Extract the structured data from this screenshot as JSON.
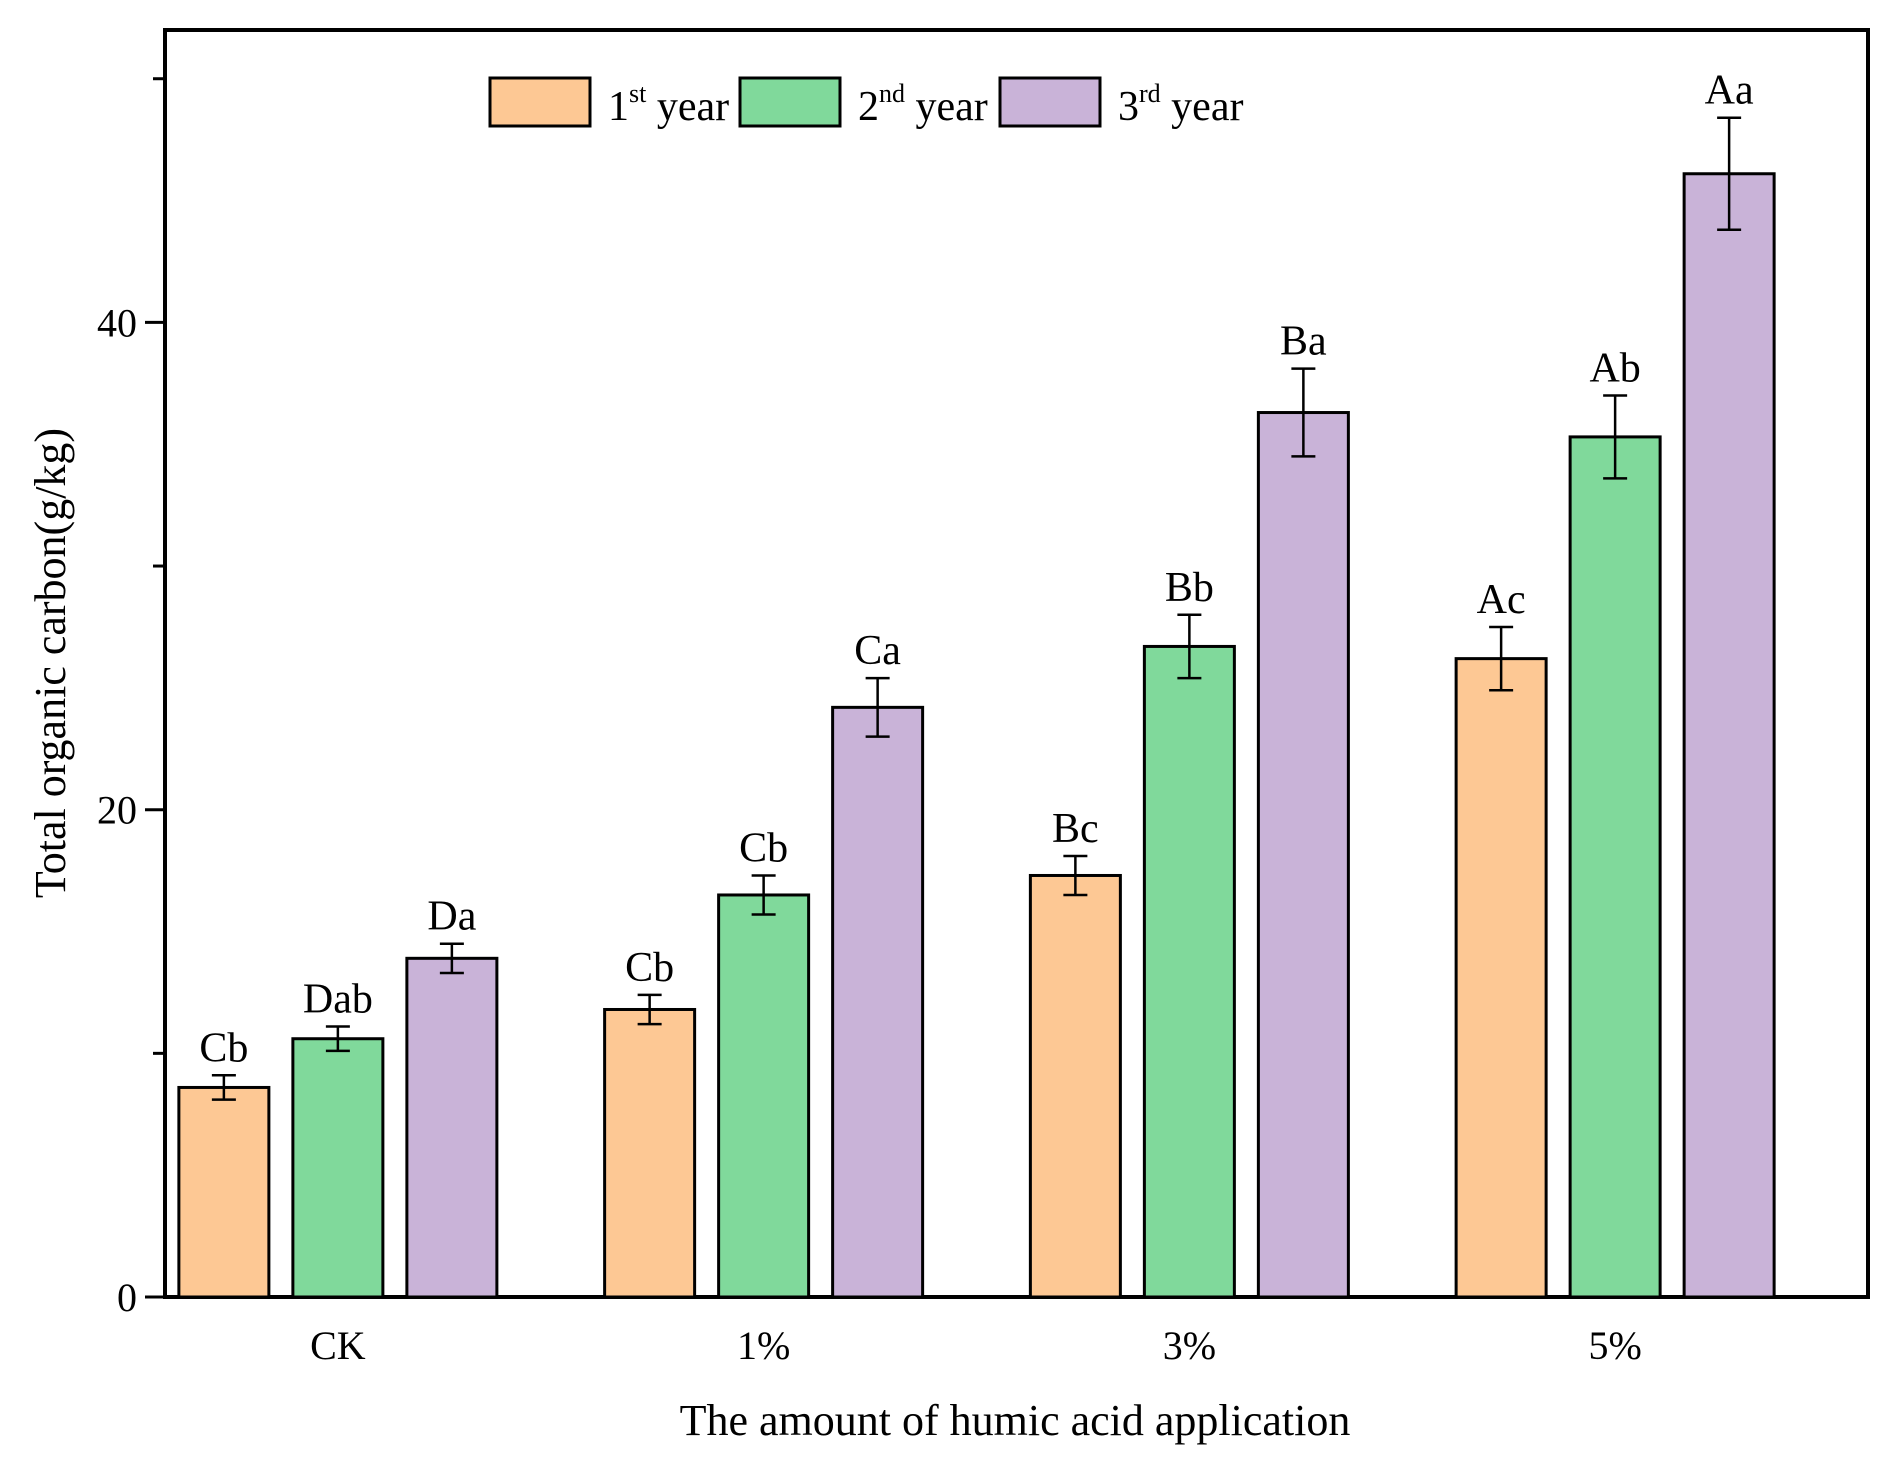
{
  "chart_data": {
    "type": "bar",
    "title": "",
    "xlabel": "The amount of humic acid application",
    "ylabel": "Total organic carbon(g/kg)",
    "ylim": [
      0,
      52
    ],
    "yticks": [
      0,
      20,
      40
    ],
    "grid": false,
    "legend_position": "top-center",
    "categories": [
      "CK",
      "1%",
      "3%",
      "5%"
    ],
    "series": [
      {
        "name": "1st year",
        "legend_main": "1",
        "legend_sup": "st",
        "legend_rest": " year",
        "color": "#FDC894",
        "values": [
          8.6,
          11.8,
          17.3,
          26.2
        ],
        "errors": [
          0.5,
          0.6,
          0.8,
          1.3
        ],
        "labels": [
          "Cb",
          "Cb",
          "Bc",
          "Ac"
        ]
      },
      {
        "name": "2nd year",
        "legend_main": "2",
        "legend_sup": "nd",
        "legend_rest": " year",
        "color": "#80D99B",
        "values": [
          10.6,
          16.5,
          26.7,
          35.3
        ],
        "errors": [
          0.5,
          0.8,
          1.3,
          1.7
        ],
        "labels": [
          "Dab",
          "Cb",
          "Bb",
          "Ab"
        ]
      },
      {
        "name": "3rd year",
        "legend_main": "3",
        "legend_sup": "rd",
        "legend_rest": " year",
        "color": "#C9B3D8",
        "values": [
          13.9,
          24.2,
          36.3,
          46.1
        ],
        "errors": [
          0.6,
          1.2,
          1.8,
          2.3
        ],
        "labels": [
          "Da",
          "Ca",
          "Ba",
          "Aa"
        ]
      }
    ]
  }
}
